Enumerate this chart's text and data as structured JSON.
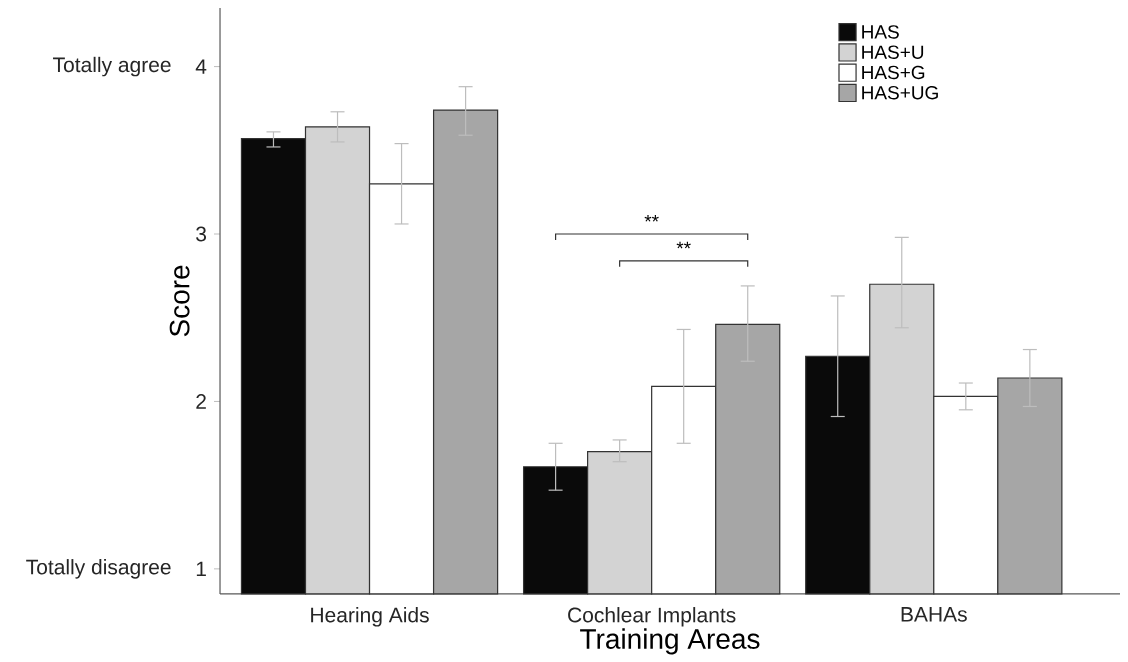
{
  "chart_data": {
    "type": "bar",
    "xlabel": "Training Areas",
    "ylabel": "Score",
    "categories": [
      "Hearing Aids",
      "Cochlear Implants",
      "BAHAs"
    ],
    "series": [
      {
        "name": "HAS",
        "color": "#0a0a0a",
        "values": [
          3.57,
          1.61,
          2.27
        ],
        "errors": [
          [
            3.52,
            3.61
          ],
          [
            1.47,
            1.75
          ],
          [
            1.91,
            2.63
          ]
        ]
      },
      {
        "name": "HAS+U",
        "color": "#d3d3d3",
        "values": [
          3.64,
          1.7,
          2.7
        ],
        "errors": [
          [
            3.55,
            3.73
          ],
          [
            1.64,
            1.77
          ],
          [
            2.44,
            2.98
          ]
        ]
      },
      {
        "name": "HAS+G",
        "color": "#ffffff",
        "values": [
          3.3,
          2.09,
          2.03
        ],
        "errors": [
          [
            3.06,
            3.54
          ],
          [
            1.75,
            2.43
          ],
          [
            1.95,
            2.11
          ]
        ]
      },
      {
        "name": "HAS+UG",
        "color": "#a6a6a6",
        "values": [
          3.74,
          2.46,
          2.14
        ],
        "errors": [
          [
            3.59,
            3.88
          ],
          [
            2.24,
            2.69
          ],
          [
            1.97,
            2.31
          ]
        ]
      }
    ],
    "ylim": [
      0.85,
      4.35
    ],
    "yticks": [
      1,
      2,
      3,
      4
    ],
    "legend": "top right",
    "grid": false,
    "annotations": [
      "Totally agree",
      "Totally disagree",
      "**",
      "**"
    ]
  }
}
